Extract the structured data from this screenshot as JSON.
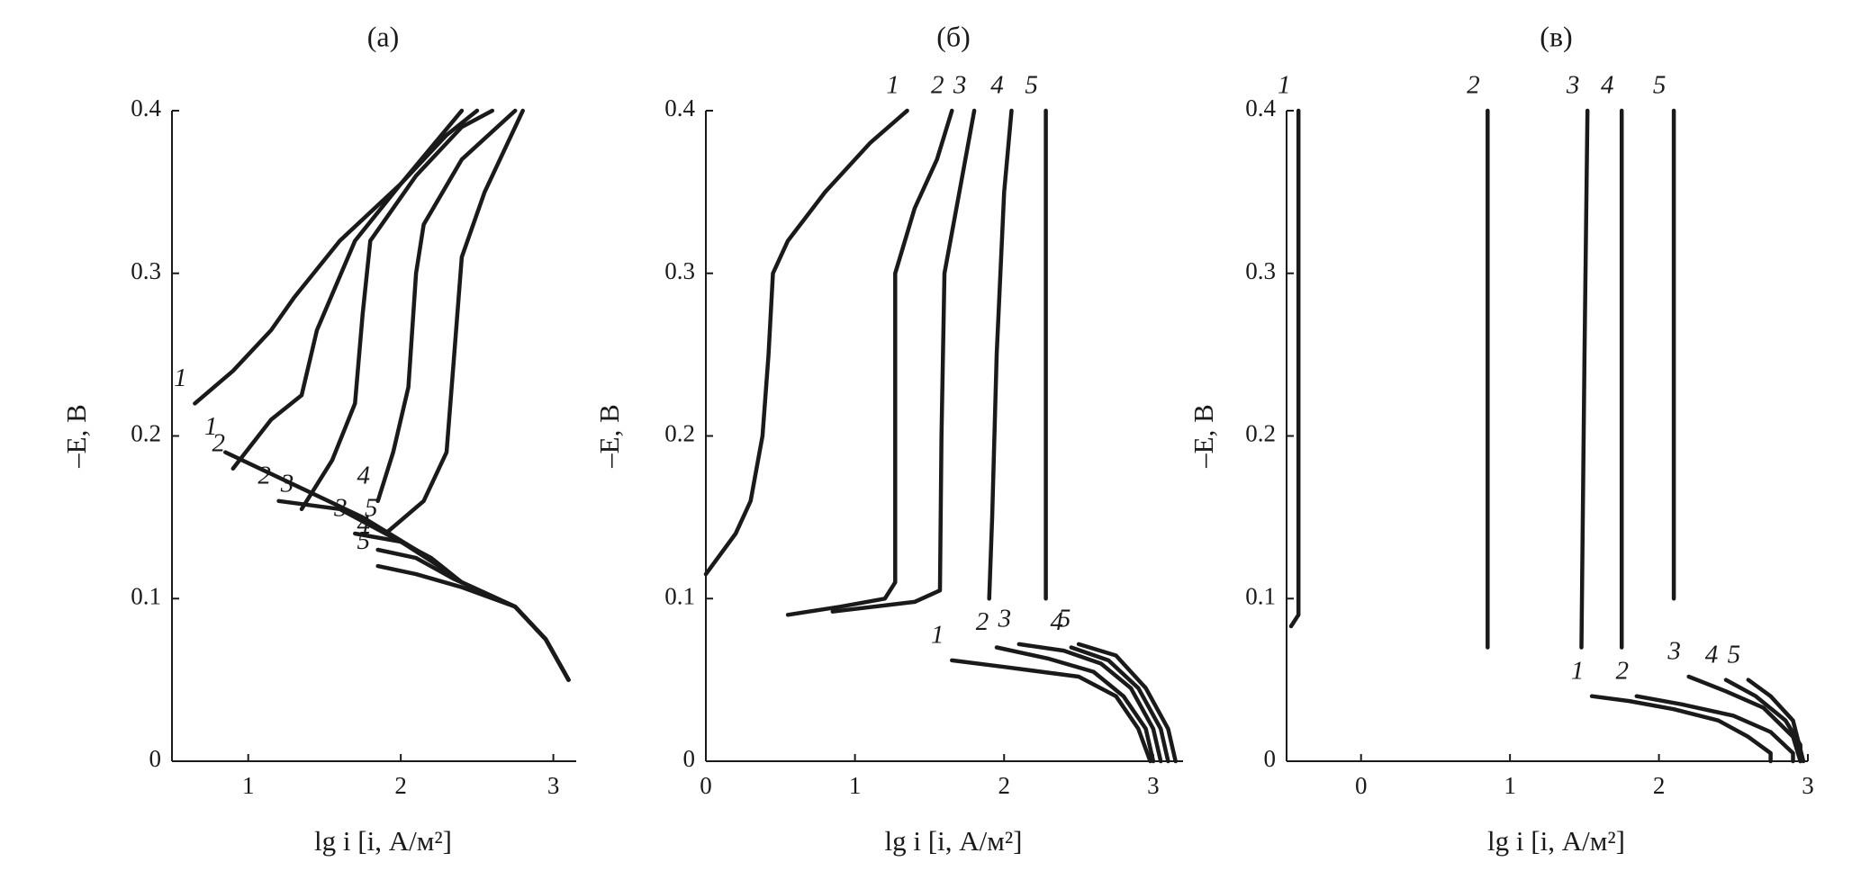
{
  "chart_data": [
    {
      "type": "line",
      "title": "(а)",
      "x_label": "lg i [i, А/м²]",
      "y_label": "–E, В",
      "color": "#1a1a1a",
      "xlim": [
        0.5,
        3.15
      ],
      "xticks": [
        1,
        2,
        3
      ],
      "ylim": [
        0,
        0.4
      ],
      "yticks": [
        0,
        0.1,
        0.2,
        0.3,
        0.4
      ],
      "series": [
        {
          "name": "1",
          "x": [
            0.65,
            0.9,
            1.15,
            1.3,
            1.6,
            2.0,
            2.4
          ],
          "values": [
            0.22,
            0.24,
            0.265,
            0.285,
            0.32,
            0.355,
            0.4
          ]
        },
        {
          "name": "2",
          "x": [
            0.9,
            1.15,
            1.35,
            1.45,
            1.7,
            2.0,
            2.3,
            2.5
          ],
          "values": [
            0.18,
            0.21,
            0.225,
            0.265,
            0.32,
            0.355,
            0.385,
            0.4
          ]
        },
        {
          "name": "3",
          "x": [
            1.35,
            1.55,
            1.7,
            1.75,
            1.8,
            2.1,
            2.4,
            2.6
          ],
          "values": [
            0.155,
            0.185,
            0.22,
            0.275,
            0.32,
            0.36,
            0.39,
            0.4
          ]
        },
        {
          "name": "4",
          "x": [
            1.85,
            1.95,
            2.05,
            2.1,
            2.15,
            2.4,
            2.75
          ],
          "values": [
            0.16,
            0.19,
            0.23,
            0.3,
            0.33,
            0.37,
            0.4
          ]
        },
        {
          "name": "5",
          "x": [
            1.9,
            2.15,
            2.3,
            2.35,
            2.4,
            2.55,
            2.8
          ],
          "values": [
            0.14,
            0.16,
            0.19,
            0.25,
            0.31,
            0.35,
            0.4
          ]
        },
        {
          "name": "1",
          "x": [
            0.85,
            1.3,
            1.75,
            2.1,
            2.4,
            2.75,
            2.95,
            3.1
          ],
          "values": [
            0.19,
            0.17,
            0.15,
            0.13,
            0.11,
            0.095,
            0.075,
            0.05
          ]
        },
        {
          "name": "2",
          "x": [
            1.2,
            1.6,
            1.9,
            2.2,
            2.4,
            2.75,
            2.95,
            3.1
          ],
          "values": [
            0.16,
            0.155,
            0.14,
            0.125,
            0.11,
            0.095,
            0.075,
            0.05
          ]
        },
        {
          "name": "3",
          "x": [
            1.7,
            2.0,
            2.25,
            2.4,
            2.75,
            2.95,
            3.1
          ],
          "values": [
            0.14,
            0.135,
            0.12,
            0.11,
            0.095,
            0.075,
            0.05
          ]
        },
        {
          "name": "4",
          "x": [
            1.85,
            2.1,
            2.35,
            2.75,
            2.95,
            3.1
          ],
          "values": [
            0.13,
            0.125,
            0.112,
            0.095,
            0.075,
            0.05
          ]
        },
        {
          "name": "5",
          "x": [
            1.85,
            2.1,
            2.4,
            2.75,
            2.95,
            3.1
          ],
          "values": [
            0.12,
            0.115,
            0.107,
            0.095,
            0.075,
            0.05
          ]
        }
      ]
    },
    {
      "type": "line",
      "title": "(б)",
      "x_label": "lg i [i, А/м²]",
      "y_label": "–E, В",
      "color": "#1a1a1a",
      "xlim": [
        0,
        3.2
      ],
      "xticks": [
        0,
        1,
        2,
        3
      ],
      "ylim": [
        0,
        0.4
      ],
      "yticks": [
        0,
        0.1,
        0.2,
        0.3,
        0.4
      ],
      "series": [
        {
          "name": "1",
          "x": [
            1.35,
            1.1,
            0.8,
            0.55,
            0.45,
            0.42,
            0.38,
            0.3,
            0.2,
            0
          ],
          "values": [
            0.4,
            0.38,
            0.35,
            0.32,
            0.3,
            0.25,
            0.2,
            0.16,
            0.14,
            0.115
          ]
        },
        {
          "name": "2",
          "x": [
            1.65,
            1.55,
            1.4,
            1.27,
            1.27,
            1.27,
            1.2,
            0.9,
            0.55
          ],
          "values": [
            0.4,
            0.37,
            0.34,
            0.3,
            0.2,
            0.11,
            0.1,
            0.095,
            0.09
          ]
        },
        {
          "name": "3",
          "x": [
            1.8,
            1.7,
            1.6,
            1.58,
            1.57,
            1.4,
            0.85
          ],
          "values": [
            0.4,
            0.35,
            0.3,
            0.2,
            0.105,
            0.098,
            0.092
          ]
        },
        {
          "name": "4",
          "x": [
            2.05,
            2.0,
            1.95,
            1.92,
            1.9
          ],
          "values": [
            0.4,
            0.35,
            0.25,
            0.15,
            0.1
          ]
        },
        {
          "name": "5",
          "x": [
            2.28,
            2.28
          ],
          "values": [
            0.4,
            0.1
          ]
        },
        {
          "name": "1",
          "x": [
            1.65,
            2.0,
            2.5,
            2.75,
            2.9,
            2.98
          ],
          "values": [
            0.062,
            0.058,
            0.052,
            0.04,
            0.02,
            0
          ]
        },
        {
          "name": "2",
          "x": [
            1.95,
            2.3,
            2.6,
            2.8,
            2.95,
            3.0
          ],
          "values": [
            0.07,
            0.063,
            0.055,
            0.04,
            0.02,
            0
          ]
        },
        {
          "name": "3",
          "x": [
            2.1,
            2.4,
            2.65,
            2.85,
            3.0,
            3.05
          ],
          "values": [
            0.072,
            0.068,
            0.06,
            0.045,
            0.02,
            0
          ]
        },
        {
          "name": "4",
          "x": [
            2.45,
            2.7,
            2.9,
            3.05,
            3.1
          ],
          "values": [
            0.07,
            0.062,
            0.045,
            0.02,
            0
          ]
        },
        {
          "name": "5",
          "x": [
            2.5,
            2.75,
            2.95,
            3.1,
            3.15
          ],
          "values": [
            0.072,
            0.065,
            0.045,
            0.02,
            0
          ]
        }
      ]
    },
    {
      "type": "line",
      "title": "(в)",
      "x_label": "lg i [i, А/м²]",
      "y_label": "–E, В",
      "color": "#1a1a1a",
      "xlim": [
        -0.5,
        3
      ],
      "xticks": [
        0,
        1,
        2,
        3
      ],
      "ylim": [
        0,
        0.4
      ],
      "yticks": [
        0,
        0.1,
        0.2,
        0.3,
        0.4
      ],
      "series": [
        {
          "name": "1",
          "x": [
            -0.42,
            -0.42,
            -0.47
          ],
          "values": [
            0.4,
            0.09,
            0.083
          ]
        },
        {
          "name": "2",
          "x": [
            0.85,
            0.85
          ],
          "values": [
            0.4,
            0.07
          ]
        },
        {
          "name": "3",
          "x": [
            1.52,
            1.5,
            1.48
          ],
          "values": [
            0.4,
            0.25,
            0.07
          ]
        },
        {
          "name": "4",
          "x": [
            1.75,
            1.75
          ],
          "values": [
            0.4,
            0.07
          ]
        },
        {
          "name": "5",
          "x": [
            2.1,
            2.1
          ],
          "values": [
            0.4,
            0.1
          ]
        },
        {
          "name": "1",
          "x": [
            1.55,
            1.8,
            2.1,
            2.4,
            2.6,
            2.75,
            2.75
          ],
          "values": [
            0.04,
            0.037,
            0.032,
            0.025,
            0.015,
            0.005,
            0
          ]
        },
        {
          "name": "2",
          "x": [
            1.85,
            2.15,
            2.5,
            2.75,
            2.9,
            2.9
          ],
          "values": [
            0.04,
            0.035,
            0.028,
            0.018,
            0.005,
            0
          ]
        },
        {
          "name": "3",
          "x": [
            2.2,
            2.45,
            2.7,
            2.9,
            2.95
          ],
          "values": [
            0.052,
            0.043,
            0.033,
            0.015,
            0
          ]
        },
        {
          "name": "4",
          "x": [
            2.45,
            2.65,
            2.85,
            2.95,
            2.95
          ],
          "values": [
            0.05,
            0.04,
            0.025,
            0.01,
            0
          ]
        },
        {
          "name": "5",
          "x": [
            2.6,
            2.75,
            2.9,
            2.97
          ],
          "values": [
            0.05,
            0.04,
            0.025,
            0
          ]
        }
      ]
    }
  ]
}
